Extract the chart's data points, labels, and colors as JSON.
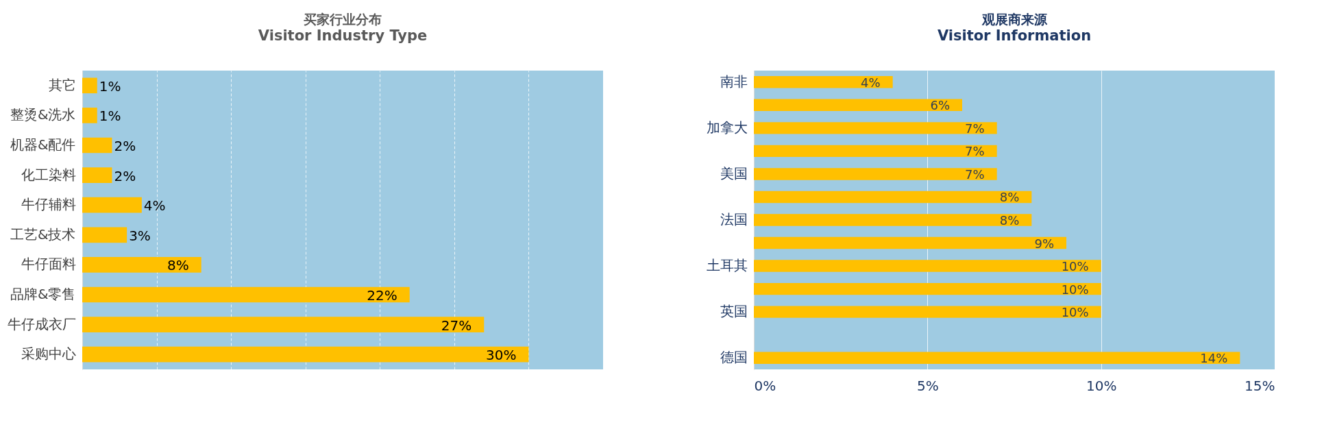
{
  "chart_data": [
    {
      "type": "bar",
      "orientation": "horizontal",
      "title": "买家行业分布",
      "subtitle": "Visitor Industry Type",
      "categories": [
        "其它",
        "整烫&洗水",
        "机器&配件",
        "化工染料",
        "牛仔辅料",
        "工艺&技术",
        "牛仔面料",
        "品牌&零售",
        "牛仔成衣厂",
        "采购中心"
      ],
      "values": [
        1,
        1,
        2,
        2,
        4,
        3,
        8,
        22,
        27,
        30
      ],
      "value_labels": [
        "1%",
        "1%",
        "2%",
        "2%",
        "4%",
        "3%",
        "8%",
        "22%",
        "27%",
        "30%"
      ],
      "color": "#ffc000",
      "xlim": [
        0,
        35
      ],
      "xticks": [
        {
          "value": 0,
          "label": null
        },
        {
          "value": 5,
          "label": null
        },
        {
          "value": 10,
          "label": null
        },
        {
          "value": 15,
          "label": null
        },
        {
          "value": 20,
          "label": null
        },
        {
          "value": 25,
          "label": null
        },
        {
          "value": 30,
          "label": null
        },
        {
          "value": 35,
          "label": null
        }
      ],
      "grid": "x",
      "tick_labels": "y"
    },
    {
      "type": "bar",
      "orientation": "horizontal",
      "title": "观展商来源",
      "subtitle": "Visitor Information",
      "categories": [
        "南非",
        null,
        "加拿大",
        null,
        "美国",
        null,
        "法国",
        null,
        "土耳其",
        null,
        "英国",
        null,
        "德国"
      ],
      "values": [
        4,
        6,
        7,
        7,
        7,
        8,
        8,
        9,
        10,
        10,
        10,
        null,
        14
      ],
      "value_labels": [
        "4%",
        "6%",
        "7%",
        "7%",
        "7%",
        "8%",
        "8%",
        "9%",
        "10%",
        "10%",
        "10%",
        null,
        "14%"
      ],
      "color": "#ffc000",
      "xlim": [
        0,
        15
      ],
      "xticks": [
        {
          "value": 0,
          "label": "0%"
        },
        {
          "value": 5,
          "label": "5%"
        },
        {
          "value": 10,
          "label": "10%"
        },
        {
          "value": 15,
          "label": "15%"
        }
      ],
      "grid": "x"
    }
  ]
}
